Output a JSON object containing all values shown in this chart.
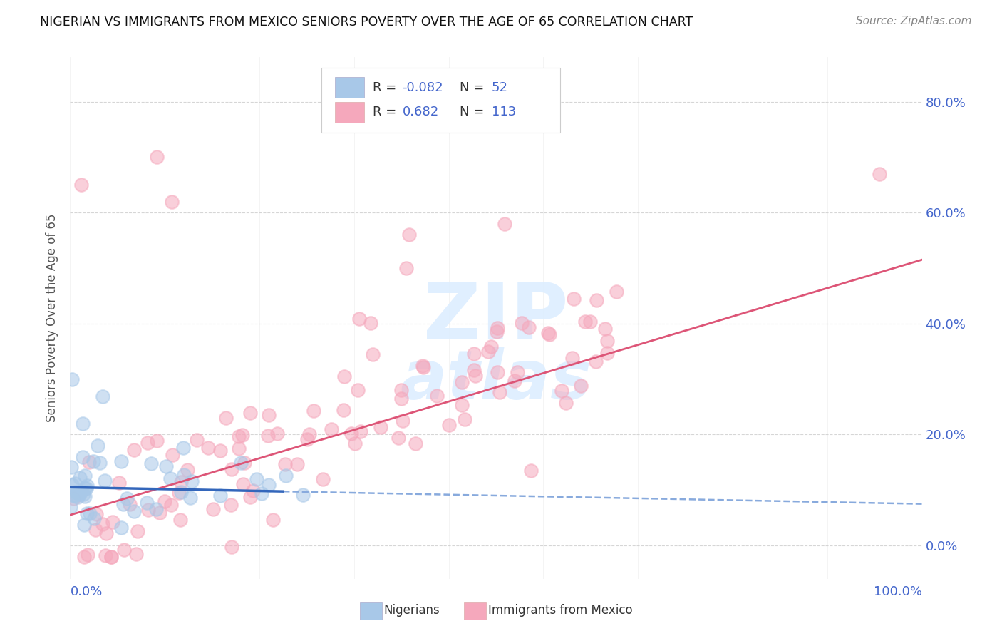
{
  "title": "NIGERIAN VS IMMIGRANTS FROM MEXICO SENIORS POVERTY OVER THE AGE OF 65 CORRELATION CHART",
  "source": "Source: ZipAtlas.com",
  "ylabel": "Seniors Poverty Over the Age of 65",
  "nigerian_color": "#a8c8e8",
  "mexican_color": "#f5a8bc",
  "nigerian_line_color_solid": "#3366bb",
  "nigerian_line_color_dashed": "#88aadd",
  "mexican_line_color": "#dd5577",
  "nigerian_R": -0.082,
  "nigerian_N": 52,
  "mexican_R": 0.682,
  "mexican_N": 113,
  "bg_color": "#ffffff",
  "grid_color": "#cccccc",
  "legend_text_color": "#4466cc",
  "axis_label_color": "#4466cc",
  "watermark_color": "#ddeeff",
  "scatter_alpha": 0.55,
  "scatter_size": 180
}
